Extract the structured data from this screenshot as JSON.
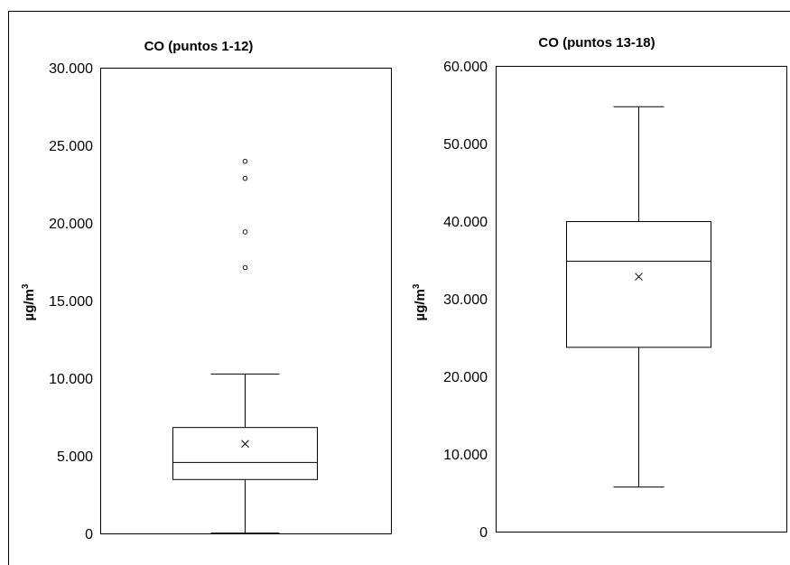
{
  "chart_data": [
    {
      "type": "box",
      "title": "CO (puntos 1-12)",
      "ylabel": "µg/m",
      "ylabel_sup": "3",
      "ylim": [
        0,
        30000
      ],
      "yticks": [
        0,
        5000,
        10000,
        15000,
        20000,
        25000,
        30000
      ],
      "ytick_labels": [
        "0",
        "5.000",
        "10.000",
        "15.000",
        "20.000",
        "25.000",
        "30.000"
      ],
      "box": {
        "min": 50,
        "q1": 3500,
        "median": 4600,
        "q3": 6850,
        "max": 10300,
        "mean": 5800
      },
      "outliers": [
        17150,
        19450,
        22900,
        24000
      ]
    },
    {
      "type": "box",
      "title": "CO (puntos 13-18)",
      "ylabel": "µg/m",
      "ylabel_sup": "3",
      "ylim": [
        0,
        60000
      ],
      "yticks": [
        0,
        10000,
        20000,
        30000,
        40000,
        50000,
        60000
      ],
      "ytick_labels": [
        "0",
        "10.000",
        "20.000",
        "30.000",
        "40.000",
        "50.000",
        "60.000"
      ],
      "box": {
        "min": 5800,
        "q1": 23800,
        "median": 34900,
        "q3": 40000,
        "max": 54800,
        "mean": 32900
      },
      "outliers": []
    }
  ]
}
